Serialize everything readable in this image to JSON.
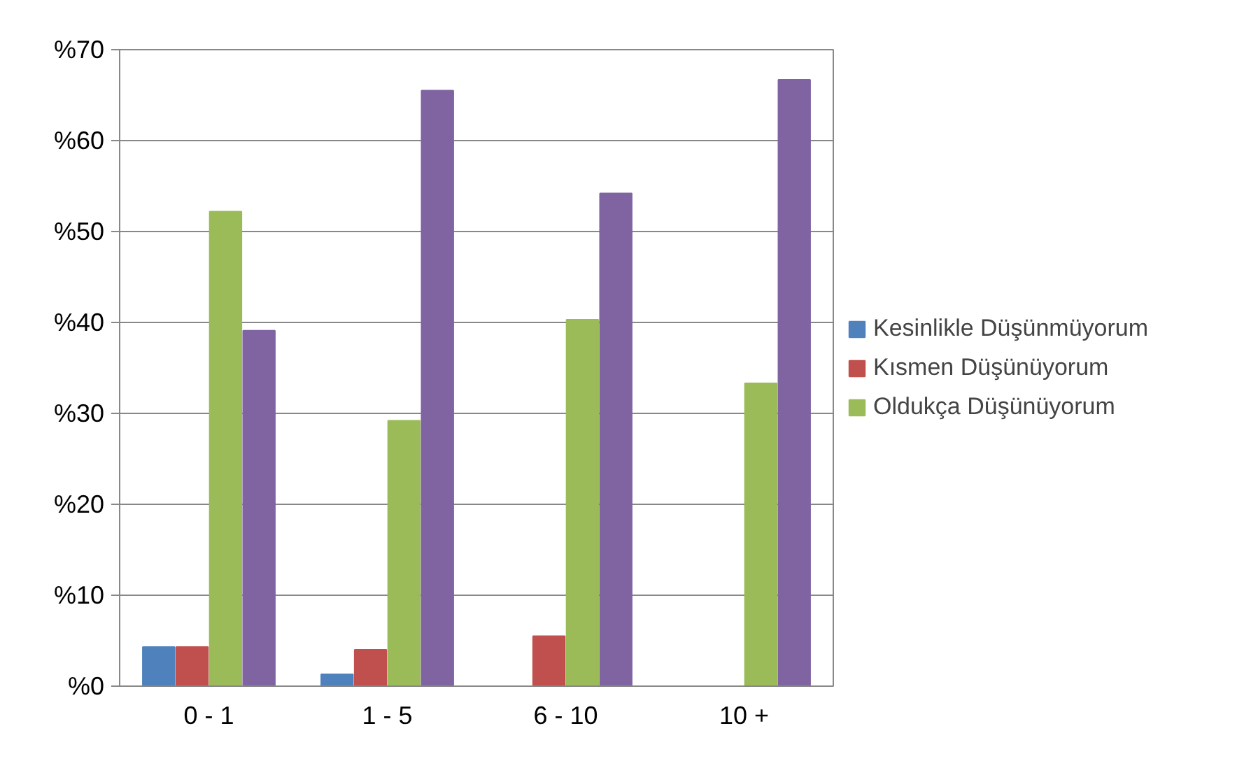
{
  "chart_data": {
    "type": "bar",
    "categories": [
      "0 - 1",
      "1 - 5",
      "6 - 10",
      "10 +"
    ],
    "series": [
      {
        "name": "Kesinlikle Düşünmüyorum",
        "color": "#4f81bd",
        "values": [
          4.3,
          1.3,
          0,
          0
        ]
      },
      {
        "name": "Kısmen Düşünüyorum",
        "color": "#c0504d",
        "values": [
          4.3,
          4.0,
          5.5,
          0
        ]
      },
      {
        "name": "Oldukça Düşünüyorum",
        "color": "#9bbb59",
        "values": [
          52.2,
          29.2,
          40.3,
          33.3
        ]
      },
      {
        "color": "#8064a2",
        "values": [
          39.1,
          65.5,
          54.2,
          66.7
        ]
      }
    ],
    "ylim": [
      0,
      70
    ],
    "yticks": [
      {
        "value": 0,
        "label": "%0"
      },
      {
        "value": 10,
        "label": "%10"
      },
      {
        "value": 20,
        "label": "%20"
      },
      {
        "value": 30,
        "label": "%30"
      },
      {
        "value": 40,
        "label": "%40"
      },
      {
        "value": 50,
        "label": "%50"
      },
      {
        "value": 60,
        "label": "%60"
      },
      {
        "value": 70,
        "label": "%70"
      }
    ],
    "grid": "y",
    "legend": "right"
  }
}
